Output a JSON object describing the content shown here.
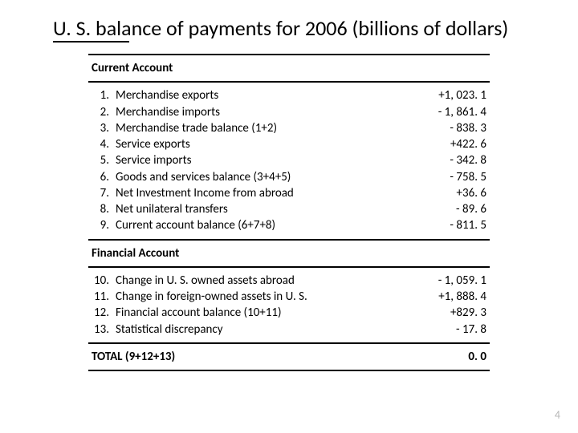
{
  "title": "U. S. balance of payments for 2006 (billions of dollars)",
  "page_number": "4",
  "colors": {
    "text": "#000000",
    "background": "#ffffff",
    "border": "#000000",
    "page_num": "#b8b8b8"
  },
  "typography": {
    "title_fontsize": 26,
    "body_fontsize": 15,
    "font_family": "Calibri"
  },
  "table": {
    "type": "table",
    "sections": [
      {
        "header": "Current Account",
        "rows": [
          {
            "num": "1.",
            "label": "Merchandise exports",
            "value": "+1, 023. 1"
          },
          {
            "num": "2.",
            "label": "Merchandise imports",
            "value": "- 1, 861. 4"
          },
          {
            "num": "3.",
            "label": "Merchandise trade balance (1+2)",
            "value": "- 838. 3"
          },
          {
            "num": "4.",
            "label": "Service exports",
            "value": "+422. 6"
          },
          {
            "num": "5.",
            "label": "Service imports",
            "value": "- 342. 8"
          },
          {
            "num": "6.",
            "label": "Goods and services balance (3+4+5)",
            "value": "- 758. 5"
          },
          {
            "num": "7.",
            "label": "Net Investment Income from abroad",
            "value": "+36. 6"
          },
          {
            "num": "8.",
            "label": "Net unilateral transfers",
            "value": "- 89. 6"
          },
          {
            "num": "9.",
            "label": "Current account balance (6+7+8)",
            "value": "- 811. 5"
          }
        ]
      },
      {
        "header": "Financial Account",
        "rows": [
          {
            "num": "10.",
            "label": "Change in U. S. owned assets abroad",
            "value": "- 1, 059. 1"
          },
          {
            "num": "11.",
            "label": "Change in foreign-owned assets in U. S.",
            "value": "+1, 888. 4"
          },
          {
            "num": "12.",
            "label": "Financial account balance (10+11)",
            "value": "+829. 3"
          },
          {
            "num": "13.",
            "label": "Statistical discrepancy",
            "value": "- 17. 8"
          }
        ]
      }
    ],
    "total": {
      "label": "TOTAL (9+12+13)",
      "value": "0. 0"
    }
  }
}
